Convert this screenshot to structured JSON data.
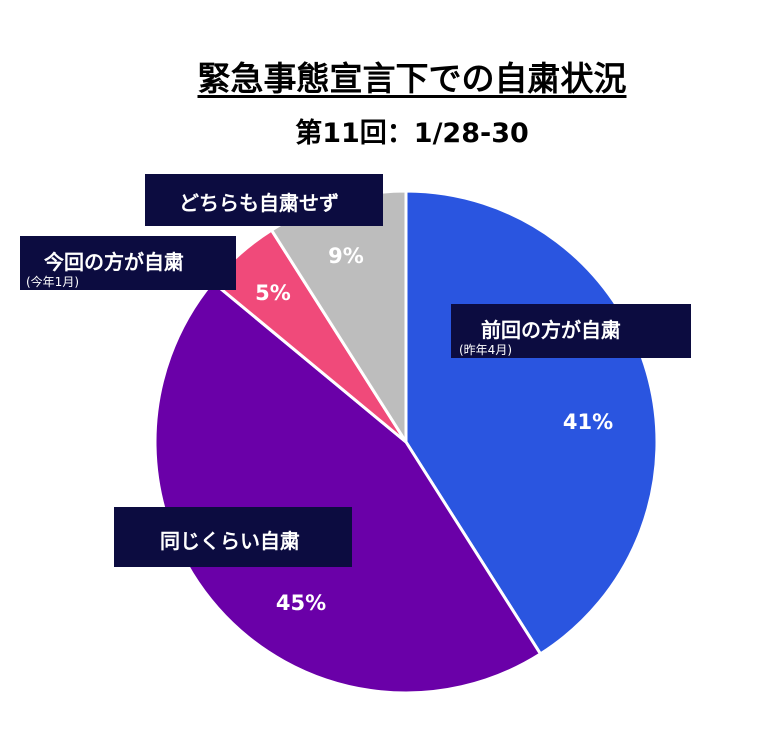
{
  "title": "緊急事態宣言下での自粛状況",
  "subtitle": "第11回：1/28-30",
  "chart_data": {
    "type": "pie",
    "start_angle_deg": 0,
    "direction": "clockwise",
    "slices": [
      {
        "label": "前回の方が自粛",
        "sublabel": "(昨年4月)",
        "value": 41,
        "display": "41%",
        "color": "#2a55e0"
      },
      {
        "label": "同じくらい自粛",
        "sublabel": "",
        "value": 45,
        "display": "45%",
        "color": "#6a00a8"
      },
      {
        "label": "今回の方が自粛",
        "sublabel": "(今年1月)",
        "value": 5,
        "display": "5%",
        "color": "#f04a7a"
      },
      {
        "label": "どちらも自粛せず",
        "sublabel": "",
        "value": 9,
        "display": "9%",
        "color": "#bdbdbd"
      }
    ]
  }
}
